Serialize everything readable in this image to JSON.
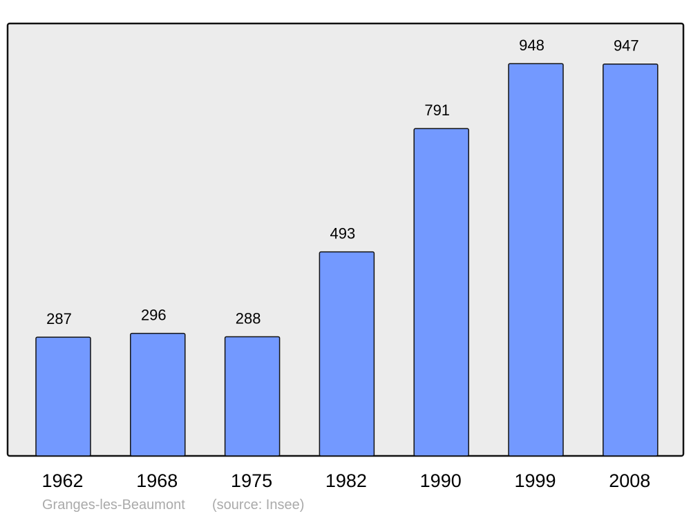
{
  "chart_data": {
    "type": "bar",
    "title": "",
    "xlabel": "",
    "ylabel": "",
    "categories": [
      "1962",
      "1968",
      "1975",
      "1982",
      "1990",
      "1999",
      "2008"
    ],
    "values": [
      287,
      296,
      288,
      493,
      791,
      948,
      947
    ],
    "ylim": [
      0,
      1045
    ],
    "grid": false,
    "data_labels": true,
    "colors": {
      "bar": "#7399ff",
      "background": "#ececec",
      "footer_text": "#aaaaaa"
    }
  },
  "footer": {
    "place": "Granges-les-Beaumont",
    "source": "(source: Insee)"
  }
}
